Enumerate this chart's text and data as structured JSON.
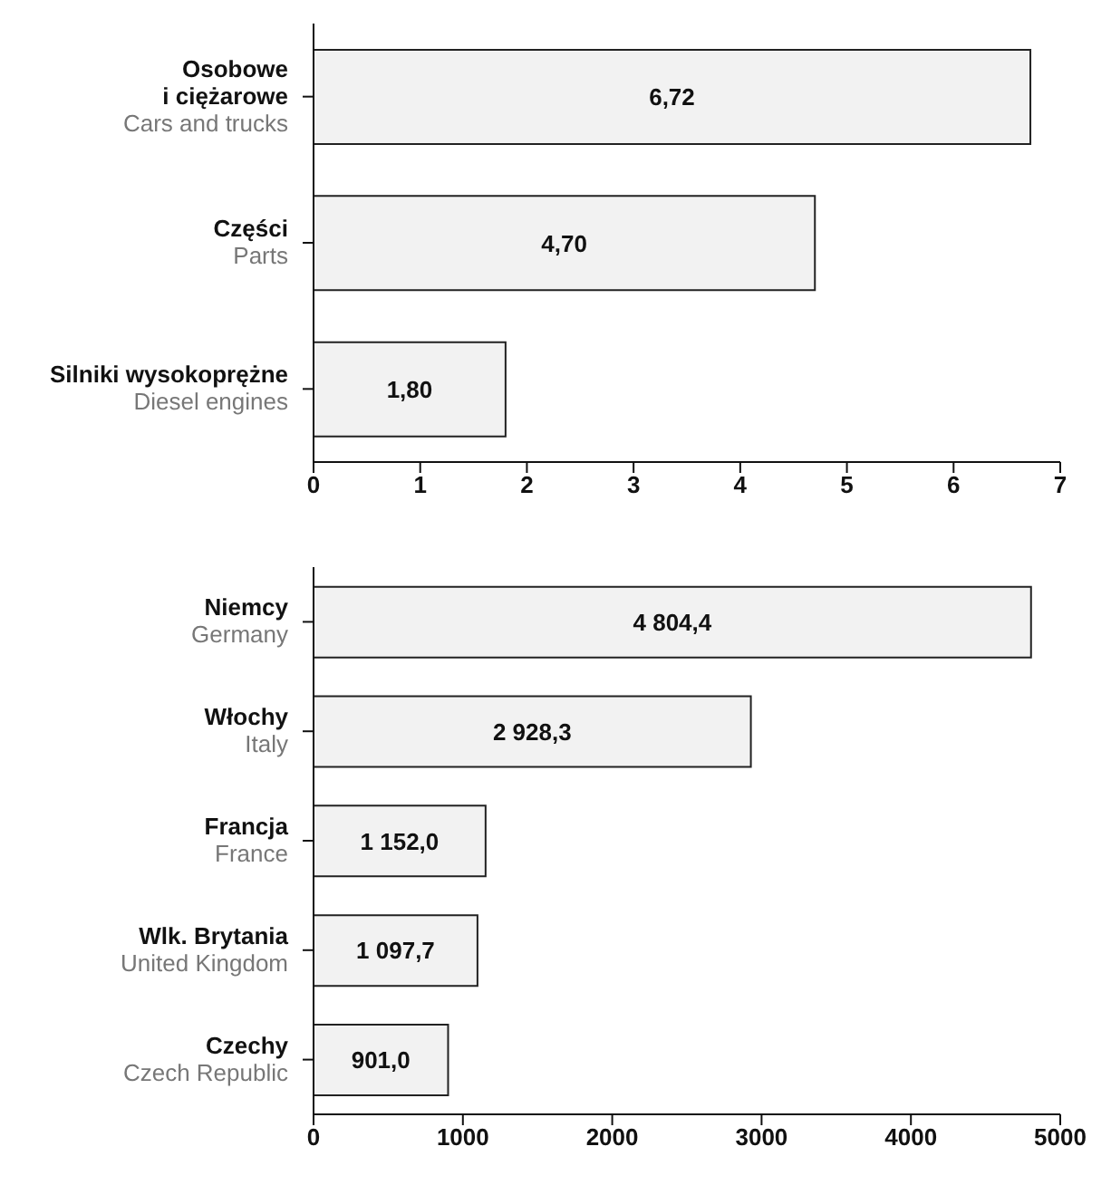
{
  "chart_data": [
    {
      "type": "bar",
      "orientation": "horizontal",
      "categories": [
        "Osobowe\ni ciężarowe\nCars and trucks",
        "Części\nParts",
        "Silniki wysokoprężne\nDiesel engines"
      ],
      "values": [
        6.72,
        4.7,
        1.8
      ],
      "value_labels": [
        "6,72",
        "4,70",
        "1,80"
      ],
      "color": "#f2f2f2",
      "xlim": [
        0,
        7
      ],
      "xticks": [
        0,
        1,
        2,
        3,
        4,
        5,
        6,
        7
      ],
      "grid": false,
      "legend": false
    },
    {
      "type": "bar",
      "orientation": "horizontal",
      "categories": [
        "Niemcy\nGermany",
        "Włochy\nItaly",
        "Francja\nFrance",
        "Wlk. Brytania\nUnited Kingdom",
        "Czechy\nCzech Republic"
      ],
      "values": [
        4804.4,
        2928.3,
        1152.0,
        1097.7,
        901.0
      ],
      "value_labels": [
        "4 804,4",
        "2 928,3",
        "1 152,0",
        "1 097,7",
        "901,0"
      ],
      "color": "#f2f2f2",
      "xlim": [
        0,
        5000
      ],
      "xticks": [
        0,
        1000,
        2000,
        3000,
        4000,
        5000
      ],
      "grid": false,
      "legend": false
    }
  ]
}
